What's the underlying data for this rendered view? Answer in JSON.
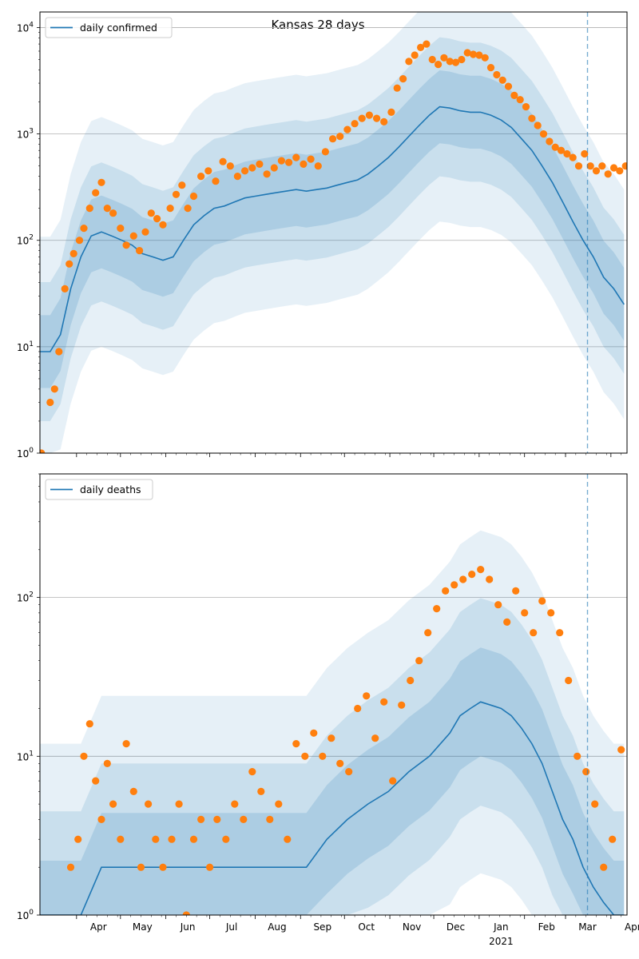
{
  "title": "Kansas 28 days",
  "colors": {
    "line": "#1f77b4",
    "points": "#ff7f0e",
    "band": "#1f77b4",
    "grid": "#b0b0b0"
  },
  "chart_data": [
    {
      "type": "line",
      "title": "Kansas 28 days",
      "legend": "daily confirmed",
      "legend_placement": "top-left",
      "yscale": "log",
      "ylim": [
        1,
        14000
      ],
      "yticks": [
        1,
        10,
        100,
        1000,
        10000
      ],
      "ytick_labels": [
        "10^0",
        "10^1",
        "10^2",
        "10^3",
        "10^4"
      ],
      "xlim": [
        "2020-03-07",
        "2021-04-12"
      ],
      "month_ticks": [
        "Apr",
        "May",
        "Jun",
        "Jul",
        "Aug",
        "Sep",
        "Oct",
        "Nov",
        "Dec",
        "Jan",
        "Feb",
        "Mar",
        "Apr"
      ],
      "year_label": "2021",
      "grid": "horizontal",
      "vline_date": "2021-03-16",
      "series": [
        {
          "name": "daily confirmed",
          "kind": "line",
          "x": [
            "2020-03-07",
            "2020-03-14",
            "2020-03-21",
            "2020-03-28",
            "2020-04-04",
            "2020-04-11",
            "2020-04-18",
            "2020-04-25",
            "2020-05-02",
            "2020-05-09",
            "2020-05-16",
            "2020-05-23",
            "2020-05-30",
            "2020-06-06",
            "2020-06-13",
            "2020-06-20",
            "2020-06-27",
            "2020-07-04",
            "2020-07-11",
            "2020-07-18",
            "2020-07-25",
            "2020-08-01",
            "2020-08-08",
            "2020-08-15",
            "2020-08-22",
            "2020-08-29",
            "2020-09-05",
            "2020-09-12",
            "2020-09-19",
            "2020-09-26",
            "2020-10-03",
            "2020-10-10",
            "2020-10-17",
            "2020-10-24",
            "2020-10-31",
            "2020-11-07",
            "2020-11-14",
            "2020-11-21",
            "2020-11-28",
            "2020-12-05",
            "2020-12-12",
            "2020-12-19",
            "2020-12-26",
            "2021-01-02",
            "2021-01-09",
            "2021-01-16",
            "2021-01-23",
            "2021-01-30",
            "2021-02-06",
            "2021-02-13",
            "2021-02-20",
            "2021-02-27",
            "2021-03-06",
            "2021-03-13",
            "2021-03-20",
            "2021-03-27",
            "2021-04-03",
            "2021-04-10"
          ],
          "y": [
            9,
            9,
            13,
            35,
            70,
            110,
            120,
            110,
            100,
            90,
            75,
            70,
            65,
            70,
            100,
            140,
            170,
            200,
            210,
            230,
            250,
            260,
            270,
            280,
            290,
            300,
            290,
            300,
            310,
            330,
            350,
            370,
            420,
            500,
            600,
            750,
            950,
            1200,
            1500,
            1800,
            1750,
            1650,
            1600,
            1600,
            1500,
            1350,
            1150,
            900,
            700,
            500,
            350,
            230,
            150,
            100,
            70,
            45,
            35,
            25
          ]
        },
        {
          "name": "observed",
          "kind": "scatter",
          "x": [
            "2020-03-08",
            "2020-03-14",
            "2020-03-17",
            "2020-03-20",
            "2020-03-24",
            "2020-03-27",
            "2020-03-30",
            "2020-04-03",
            "2020-04-06",
            "2020-04-10",
            "2020-04-14",
            "2020-04-18",
            "2020-04-22",
            "2020-04-26",
            "2020-05-01",
            "2020-05-05",
            "2020-05-10",
            "2020-05-14",
            "2020-05-18",
            "2020-05-22",
            "2020-05-26",
            "2020-05-30",
            "2020-06-04",
            "2020-06-08",
            "2020-06-12",
            "2020-06-16",
            "2020-06-20",
            "2020-06-25",
            "2020-06-30",
            "2020-07-05",
            "2020-07-10",
            "2020-07-15",
            "2020-07-20",
            "2020-07-25",
            "2020-07-30",
            "2020-08-04",
            "2020-08-09",
            "2020-08-14",
            "2020-08-19",
            "2020-08-24",
            "2020-08-29",
            "2020-09-03",
            "2020-09-08",
            "2020-09-13",
            "2020-09-18",
            "2020-09-23",
            "2020-09-28",
            "2020-10-03",
            "2020-10-08",
            "2020-10-13",
            "2020-10-18",
            "2020-10-23",
            "2020-10-28",
            "2020-11-02",
            "2020-11-06",
            "2020-11-10",
            "2020-11-14",
            "2020-11-18",
            "2020-11-22",
            "2020-11-26",
            "2020-11-30",
            "2020-12-04",
            "2020-12-08",
            "2020-12-12",
            "2020-12-16",
            "2020-12-20",
            "2020-12-24",
            "2020-12-28",
            "2021-01-01",
            "2021-01-05",
            "2021-01-09",
            "2021-01-13",
            "2021-01-17",
            "2021-01-21",
            "2021-01-25",
            "2021-01-29",
            "2021-02-02",
            "2021-02-06",
            "2021-02-10",
            "2021-02-14",
            "2021-02-18",
            "2021-02-22",
            "2021-02-26",
            "2021-03-02",
            "2021-03-06",
            "2021-03-10",
            "2021-03-14",
            "2021-03-18",
            "2021-03-22",
            "2021-03-26",
            "2021-03-30",
            "2021-04-03",
            "2021-04-07",
            "2021-04-11"
          ],
          "y": [
            1,
            3,
            4,
            9,
            35,
            60,
            75,
            100,
            130,
            200,
            280,
            350,
            200,
            180,
            130,
            90,
            110,
            80,
            120,
            180,
            160,
            140,
            200,
            270,
            330,
            200,
            260,
            400,
            450,
            360,
            550,
            500,
            400,
            450,
            480,
            520,
            420,
            480,
            560,
            540,
            600,
            520,
            580,
            500,
            680,
            900,
            950,
            1100,
            1250,
            1400,
            1500,
            1400,
            1300,
            1600,
            2700,
            3300,
            4800,
            5500,
            6500,
            7000,
            5000,
            4500,
            5200,
            4800,
            4700,
            5000,
            5800,
            5600,
            5500,
            5200,
            4200,
            3600,
            3200,
            2800,
            2300,
            2100,
            1800,
            1400,
            1200,
            1000,
            850,
            750,
            700,
            650,
            600,
            500,
            650,
            500,
            450,
            500,
            420,
            480,
            450,
            500
          ]
        }
      ]
    },
    {
      "type": "line",
      "legend": "daily deaths",
      "legend_placement": "top-left",
      "yscale": "log",
      "ylim": [
        1,
        600
      ],
      "yticks": [
        1,
        10,
        100
      ],
      "ytick_labels": [
        "10^0",
        "10^1",
        "10^2"
      ],
      "xlim": [
        "2020-03-07",
        "2021-04-12"
      ],
      "month_ticks": [
        "Apr",
        "May",
        "Jun",
        "Jul",
        "Aug",
        "Sep",
        "Oct",
        "Nov",
        "Dec",
        "Jan",
        "Feb",
        "Mar",
        "Apr"
      ],
      "year_label": "2021",
      "grid": "horizontal",
      "vline_date": "2021-03-16",
      "series": [
        {
          "name": "daily deaths",
          "kind": "line",
          "x": [
            "2020-03-07",
            "2020-03-21",
            "2020-04-04",
            "2020-04-18",
            "2020-05-02",
            "2020-05-16",
            "2020-05-30",
            "2020-06-13",
            "2020-06-27",
            "2020-07-11",
            "2020-07-25",
            "2020-08-08",
            "2020-08-22",
            "2020-09-05",
            "2020-09-19",
            "2020-10-03",
            "2020-10-17",
            "2020-10-31",
            "2020-11-14",
            "2020-11-28",
            "2020-12-12",
            "2020-12-19",
            "2020-12-26",
            "2021-01-02",
            "2021-01-09",
            "2021-01-16",
            "2021-01-23",
            "2021-01-30",
            "2021-02-06",
            "2021-02-13",
            "2021-02-20",
            "2021-02-27",
            "2021-03-06",
            "2021-03-13",
            "2021-03-20",
            "2021-03-27",
            "2021-04-03",
            "2021-04-10"
          ],
          "y": [
            1,
            1,
            1,
            2,
            2,
            2,
            2,
            2,
            2,
            2,
            2,
            2,
            2,
            2,
            3,
            4,
            5,
            6,
            8,
            10,
            14,
            18,
            20,
            22,
            21,
            20,
            18,
            15,
            12,
            9,
            6,
            4,
            3,
            2,
            1.5,
            1.2,
            1,
            1
          ]
        },
        {
          "name": "observed",
          "kind": "scatter",
          "x": [
            "2020-03-28",
            "2020-04-02",
            "2020-04-06",
            "2020-04-10",
            "2020-04-14",
            "2020-04-18",
            "2020-04-22",
            "2020-04-26",
            "2020-05-01",
            "2020-05-05",
            "2020-05-10",
            "2020-05-15",
            "2020-05-20",
            "2020-05-25",
            "2020-05-30",
            "2020-06-05",
            "2020-06-10",
            "2020-06-15",
            "2020-06-20",
            "2020-06-25",
            "2020-07-01",
            "2020-07-06",
            "2020-07-12",
            "2020-07-18",
            "2020-07-24",
            "2020-07-30",
            "2020-08-05",
            "2020-08-11",
            "2020-08-17",
            "2020-08-23",
            "2020-08-29",
            "2020-09-04",
            "2020-09-10",
            "2020-09-16",
            "2020-09-22",
            "2020-09-28",
            "2020-10-04",
            "2020-10-10",
            "2020-10-16",
            "2020-10-22",
            "2020-10-28",
            "2020-11-03",
            "2020-11-09",
            "2020-11-15",
            "2020-11-21",
            "2020-11-27",
            "2020-12-03",
            "2020-12-09",
            "2020-12-15",
            "2020-12-21",
            "2020-12-27",
            "2021-01-02",
            "2021-01-08",
            "2021-01-14",
            "2021-01-20",
            "2021-01-26",
            "2021-02-01",
            "2021-02-07",
            "2021-02-13",
            "2021-02-19",
            "2021-02-25",
            "2021-03-03",
            "2021-03-09",
            "2021-03-15",
            "2021-03-21",
            "2021-03-27",
            "2021-04-02",
            "2021-04-08"
          ],
          "y": [
            2,
            3,
            10,
            16,
            7,
            4,
            9,
            5,
            3,
            12,
            6,
            2,
            5,
            3,
            2,
            3,
            5,
            1,
            3,
            4,
            2,
            4,
            3,
            5,
            4,
            8,
            6,
            4,
            5,
            3,
            12,
            10,
            14,
            10,
            13,
            9,
            8,
            20,
            24,
            13,
            22,
            7,
            21,
            30,
            40,
            60,
            85,
            110,
            120,
            130,
            140,
            150,
            130,
            90,
            70,
            110,
            80,
            60,
            95,
            80,
            60,
            30,
            10,
            8,
            5,
            2,
            3,
            11
          ]
        }
      ]
    }
  ]
}
